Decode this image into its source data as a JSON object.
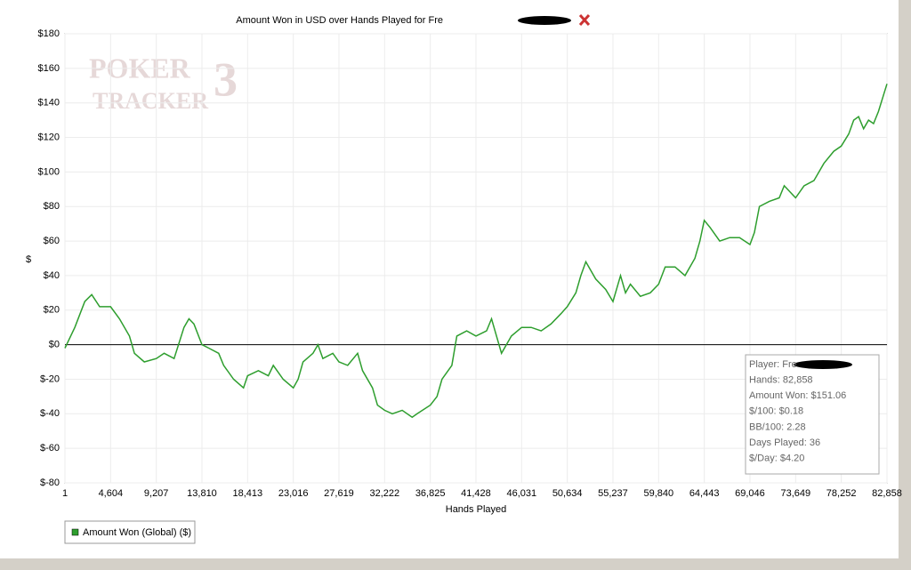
{
  "chart_data": {
    "type": "line",
    "title": "Amount Won in USD over Hands Played for Fre",
    "watermark": [
      "POKER",
      "TRACKER",
      "3"
    ],
    "x_label": "Hands Played",
    "y_label": "$",
    "xlim": [
      1,
      82858
    ],
    "ylim": [
      -80,
      180
    ],
    "xticks": [
      1,
      {
        "value": 4604,
        "label": "4,604"
      },
      {
        "value": 9207,
        "label": "9,207"
      },
      {
        "value": 13810,
        "label": "13,810"
      },
      {
        "value": 18413,
        "label": "18,413"
      },
      {
        "value": 23016,
        "label": "23,016"
      },
      {
        "value": 27619,
        "label": "27,619"
      },
      {
        "value": 32222,
        "label": "32,222"
      },
      {
        "value": 36825,
        "label": "36,825"
      },
      {
        "value": 41428,
        "label": "41,428"
      },
      {
        "value": 46031,
        "label": "46,031"
      },
      {
        "value": 50634,
        "label": "50,634"
      },
      {
        "value": 55237,
        "label": "55,237"
      },
      {
        "value": 59840,
        "label": "59,840"
      },
      {
        "value": 64443,
        "label": "64,443"
      },
      {
        "value": 69046,
        "label": "69,046"
      },
      {
        "value": 73649,
        "label": "73,649"
      },
      {
        "value": 78252,
        "label": "78,252"
      },
      {
        "value": 82858,
        "label": "82,858"
      }
    ],
    "yticks": [
      {
        "value": 180,
        "label": "$180"
      },
      {
        "value": 160,
        "label": "$160"
      },
      {
        "value": 140,
        "label": "$140"
      },
      {
        "value": 120,
        "label": "$120"
      },
      {
        "value": 100,
        "label": "$100"
      },
      {
        "value": 80,
        "label": "$80"
      },
      {
        "value": 60,
        "label": "$60"
      },
      {
        "value": 40,
        "label": "$40"
      },
      {
        "value": 20,
        "label": "$20"
      },
      {
        "value": 0,
        "label": "$0"
      },
      {
        "value": -20,
        "label": "$-20"
      },
      {
        "value": -40,
        "label": "$-40"
      },
      {
        "value": -60,
        "label": "$-60"
      },
      {
        "value": -80,
        "label": "$-80"
      }
    ],
    "grid": true,
    "x": [
      1,
      1000,
      2000,
      2700,
      3500,
      4600,
      5500,
      6500,
      7000,
      8000,
      9207,
      10000,
      11000,
      12000,
      12500,
      13000,
      13810,
      14500,
      15500,
      16000,
      17000,
      18000,
      18413,
      19500,
      20500,
      21000,
      22000,
      23016,
      23500,
      24000,
      25000,
      25500,
      26000,
      27000,
      27619,
      28500,
      29500,
      30000,
      31000,
      31500,
      32222,
      33000,
      34000,
      35000,
      35500,
      36825,
      37500,
      38000,
      39000,
      39500,
      40500,
      41428,
      42500,
      43000,
      43500,
      44000,
      45000,
      46031,
      47000,
      48000,
      49000,
      50000,
      50634,
      51500,
      52000,
      52500,
      53500,
      54500,
      55237,
      56000,
      56500,
      57000,
      58000,
      59000,
      59840,
      60500,
      61500,
      62500,
      63500,
      64000,
      64443,
      65000,
      66000,
      67000,
      68000,
      69046,
      69500,
      70000,
      71000,
      72000,
      72500,
      73649,
      74500,
      75500,
      76500,
      77500,
      78252,
      79000,
      79500,
      80000,
      80500,
      81000,
      81500,
      82000,
      82858
    ],
    "series": [
      {
        "name": "Amount Won (Global) ($)",
        "color": "#2e9e2e",
        "values": [
          -2,
          10,
          25,
          29,
          22,
          22,
          15,
          5,
          -5,
          -10,
          -8,
          -5,
          -8,
          10,
          15,
          12,
          0,
          -2,
          -5,
          -12,
          -20,
          -25,
          -18,
          -15,
          -18,
          -12,
          -20,
          -25,
          -20,
          -10,
          -5,
          0,
          -8,
          -5,
          -10,
          -12,
          -5,
          -15,
          -25,
          -35,
          -38,
          -40,
          -38,
          -42,
          -40,
          -35,
          -30,
          -20,
          -12,
          5,
          8,
          5,
          8,
          15,
          5,
          -5,
          5,
          10,
          10,
          8,
          12,
          18,
          22,
          30,
          40,
          48,
          38,
          32,
          25,
          40,
          30,
          35,
          28,
          30,
          35,
          45,
          45,
          40,
          50,
          60,
          72,
          68,
          60,
          62,
          62,
          58,
          65,
          80,
          83,
          85,
          92,
          85,
          92,
          95,
          105,
          112,
          115,
          122,
          130,
          132,
          125,
          130,
          128,
          135,
          151
        ]
      }
    ],
    "info_box": [
      "Player: Fre",
      "Hands: 82,858",
      "Amount Won: $151.06",
      "$/100: $0.18",
      "BB/100: 2.28",
      "Days Played: 36",
      "$/Day: $4.20"
    ]
  }
}
